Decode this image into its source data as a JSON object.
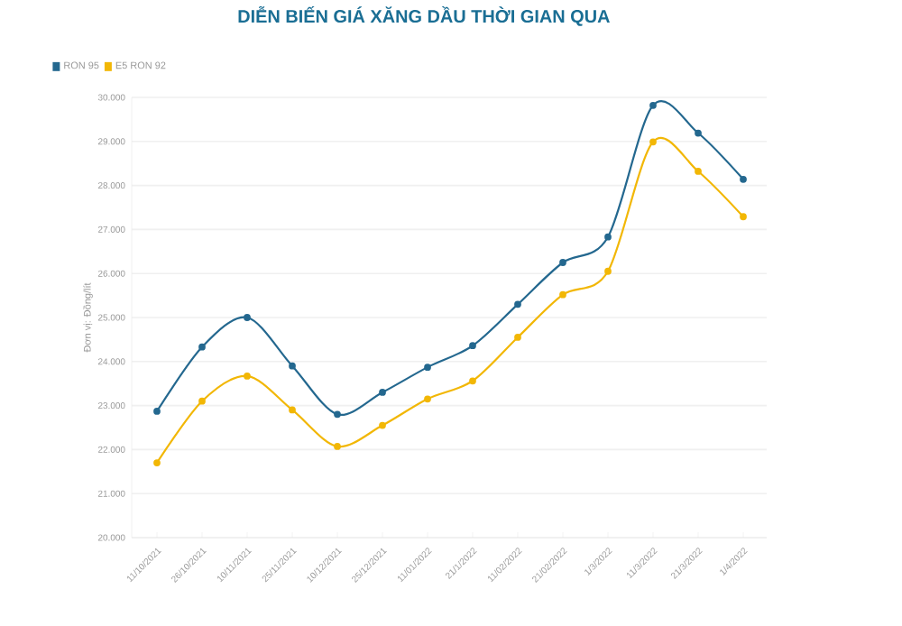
{
  "chart_data": {
    "type": "line",
    "title": "DIỄN BIẾN GIÁ XĂNG DẦU THỜI GIAN QUA",
    "ylabel": "Đơn vị: Đồng/lít",
    "categories": [
      "11/10/2021",
      "26/10/2021",
      "10/11/2021",
      "25/11/2021",
      "10/12/2021",
      "25/12/2021",
      "11/01/2022",
      "21/1/2022",
      "11/02/2022",
      "21/02/2022",
      "1/3/2022",
      "11/3/2022",
      "21/3/2022",
      "1/4/2022"
    ],
    "series": [
      {
        "name": "RON 95",
        "color": "#24688f",
        "values": [
          22870,
          24330,
          25000,
          23900,
          22800,
          23300,
          23870,
          24360,
          25300,
          26250,
          26830,
          29820,
          29190,
          28140
        ]
      },
      {
        "name": "E5 RON 92",
        "color": "#f2b705",
        "values": [
          21700,
          23100,
          23670,
          22900,
          22070,
          22550,
          23150,
          23560,
          24550,
          25520,
          26050,
          28990,
          28320,
          27290
        ]
      }
    ],
    "ylim": [
      20000,
      30000
    ],
    "yticks": [
      {
        "value": 20000,
        "label": "20.000"
      },
      {
        "value": 21000,
        "label": "21.000"
      },
      {
        "value": 22000,
        "label": "22.000"
      },
      {
        "value": 23000,
        "label": "23.000"
      },
      {
        "value": 24000,
        "label": "24.000"
      },
      {
        "value": 25000,
        "label": "25.000"
      },
      {
        "value": 26000,
        "label": "26.000"
      },
      {
        "value": 27000,
        "label": "27.000"
      },
      {
        "value": 28000,
        "label": "28.000"
      },
      {
        "value": 29000,
        "label": "29.000"
      },
      {
        "value": 30000,
        "label": "30.000"
      }
    ],
    "grid": "y",
    "legend": "top left",
    "marker": "circle",
    "line_style": "solid"
  }
}
